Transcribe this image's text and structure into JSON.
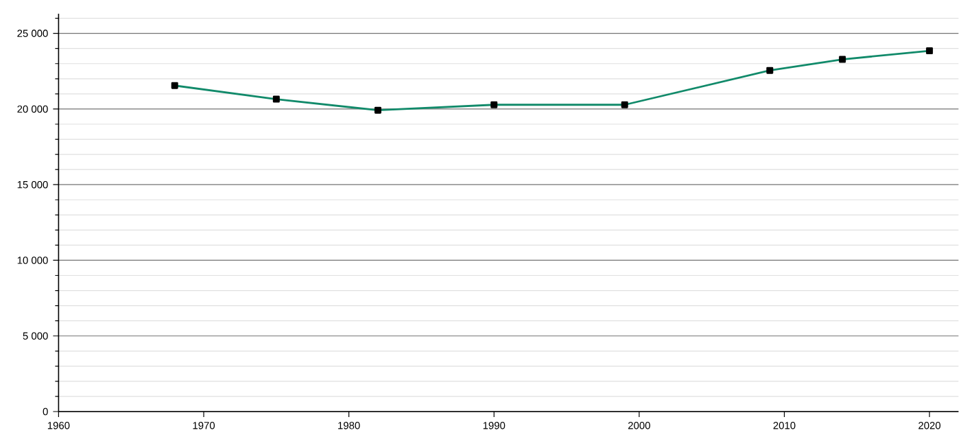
{
  "chart_data": {
    "type": "line",
    "x": [
      1968,
      1975,
      1982,
      1990,
      1999,
      2009,
      2014,
      2020
    ],
    "series": [
      {
        "color": "#118a6a",
        "values": [
          21550,
          20650,
          19920,
          20280,
          20280,
          22550,
          23280,
          23850
        ]
      }
    ],
    "marker": "square",
    "grid": "y",
    "xlim": [
      1960,
      2022
    ],
    "ylim": [
      0,
      26300
    ],
    "xticks": [
      1960,
      1970,
      1980,
      1990,
      2000,
      2010,
      2020
    ],
    "yticks": [
      {
        "value": 0,
        "label": "0"
      },
      {
        "value": 1000,
        "label": null
      },
      {
        "value": 2000,
        "label": null
      },
      {
        "value": 3000,
        "label": null
      },
      {
        "value": 4000,
        "label": null
      },
      {
        "value": 5000,
        "label": "5 000"
      },
      {
        "value": 6000,
        "label": null
      },
      {
        "value": 7000,
        "label": null
      },
      {
        "value": 8000,
        "label": null
      },
      {
        "value": 9000,
        "label": null
      },
      {
        "value": 10000,
        "label": "10 000"
      },
      {
        "value": 11000,
        "label": null
      },
      {
        "value": 12000,
        "label": null
      },
      {
        "value": 13000,
        "label": null
      },
      {
        "value": 14000,
        "label": null
      },
      {
        "value": 15000,
        "label": "15 000"
      },
      {
        "value": 16000,
        "label": null
      },
      {
        "value": 17000,
        "label": null
      },
      {
        "value": 18000,
        "label": null
      },
      {
        "value": 19000,
        "label": null
      },
      {
        "value": 20000,
        "label": "20 000"
      },
      {
        "value": 21000,
        "label": null
      },
      {
        "value": 22000,
        "label": null
      },
      {
        "value": 23000,
        "label": null
      },
      {
        "value": 24000,
        "label": null
      },
      {
        "value": 25000,
        "label": "25 000"
      },
      {
        "value": 26000,
        "label": null
      }
    ]
  }
}
